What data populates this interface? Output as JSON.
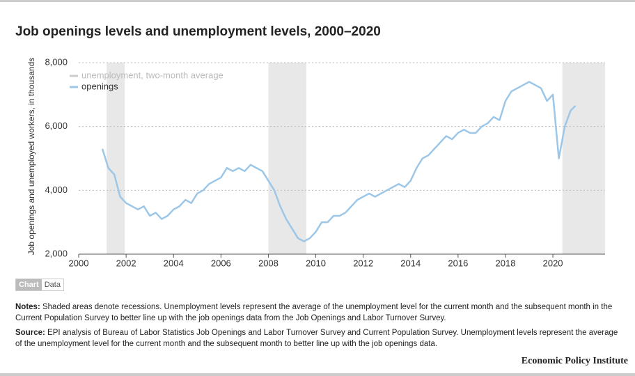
{
  "chart_data": {
    "type": "line",
    "title": "Job openings levels and unemployment levels, 2000–2020",
    "y_label": "Job openings and unemployed workers, in thousands",
    "x": [
      2001.0,
      2001.25,
      2001.5,
      2001.75,
      2002.0,
      2002.25,
      2002.5,
      2002.75,
      2003.0,
      2003.25,
      2003.5,
      2003.75,
      2004.0,
      2004.25,
      2004.5,
      2004.75,
      2005.0,
      2005.25,
      2005.5,
      2005.75,
      2006.0,
      2006.25,
      2006.5,
      2006.75,
      2007.0,
      2007.25,
      2007.5,
      2007.75,
      2008.0,
      2008.25,
      2008.5,
      2008.75,
      2009.0,
      2009.25,
      2009.5,
      2009.75,
      2010.0,
      2010.25,
      2010.5,
      2010.75,
      2011.0,
      2011.25,
      2011.5,
      2011.75,
      2012.0,
      2012.25,
      2012.5,
      2012.75,
      2013.0,
      2013.25,
      2013.5,
      2013.75,
      2014.0,
      2014.25,
      2014.5,
      2014.75,
      2015.0,
      2015.25,
      2015.5,
      2015.75,
      2016.0,
      2016.25,
      2016.5,
      2016.75,
      2017.0,
      2017.25,
      2017.5,
      2017.75,
      2018.0,
      2018.25,
      2018.5,
      2018.75,
      2019.0,
      2019.25,
      2019.5,
      2019.75,
      2020.0,
      2020.25,
      2020.5,
      2020.75,
      2020.95
    ],
    "series": [
      {
        "name": "openings",
        "color": "#9cc7e8",
        "values": [
          5300,
          4700,
          4500,
          3800,
          3600,
          3500,
          3400,
          3500,
          3200,
          3300,
          3100,
          3200,
          3400,
          3500,
          3700,
          3600,
          3900,
          4000,
          4200,
          4300,
          4400,
          4700,
          4600,
          4700,
          4600,
          4800,
          4700,
          4600,
          4300,
          4000,
          3500,
          3100,
          2800,
          2500,
          2400,
          2500,
          2700,
          3000,
          3000,
          3200,
          3200,
          3300,
          3500,
          3700,
          3800,
          3900,
          3800,
          3900,
          4000,
          4100,
          4200,
          4100,
          4300,
          4700,
          5000,
          5100,
          5300,
          5500,
          5700,
          5600,
          5800,
          5900,
          5800,
          5800,
          6000,
          6100,
          6300,
          6200,
          6800,
          7100,
          7200,
          7300,
          7400,
          7300,
          7200,
          6800,
          7000,
          5000,
          6000,
          6500,
          6650
        ]
      }
    ],
    "hidden_series": [
      {
        "name": "unemployment, two-month average",
        "color": "#cccccc"
      }
    ],
    "recessions": [
      [
        2001.18,
        2001.94
      ],
      [
        2008.0,
        2009.6
      ],
      [
        2020.4,
        2022.2
      ]
    ],
    "recession_color": "#e8e8e8",
    "xlim": [
      2000,
      2022.2
    ],
    "xticks": [
      2000,
      2002,
      2004,
      2006,
      2008,
      2010,
      2012,
      2014,
      2016,
      2018,
      2020
    ],
    "ylim": [
      2000,
      8000
    ],
    "yticks": [
      {
        "value": 2000,
        "label": "2,000"
      },
      {
        "value": 4000,
        "label": "4,000"
      },
      {
        "value": 6000,
        "label": "6,000"
      },
      {
        "value": 8000,
        "label": "8,000"
      }
    ],
    "grid": true
  },
  "tabs": [
    "Chart",
    "Data"
  ],
  "notes": {
    "label": "Notes:",
    "text": "Shaded areas denote recessions. Unemployment levels represent the average of the unemployment level for the current month and the subsequent month in the Current Population Survey to better line up with the job openings data from the Job Openings and Labor Turnover Survey."
  },
  "source": {
    "label": "Source:",
    "text": "EPI analysis of Bureau of Labor Statistics Job Openings and Labor Turnover Survey and Current Population Survey. Unemployment levels represent the average of the unemployment level for the current month and the subsequent month to better line up with the job openings data."
  },
  "publisher": "Economic Policy Institute"
}
